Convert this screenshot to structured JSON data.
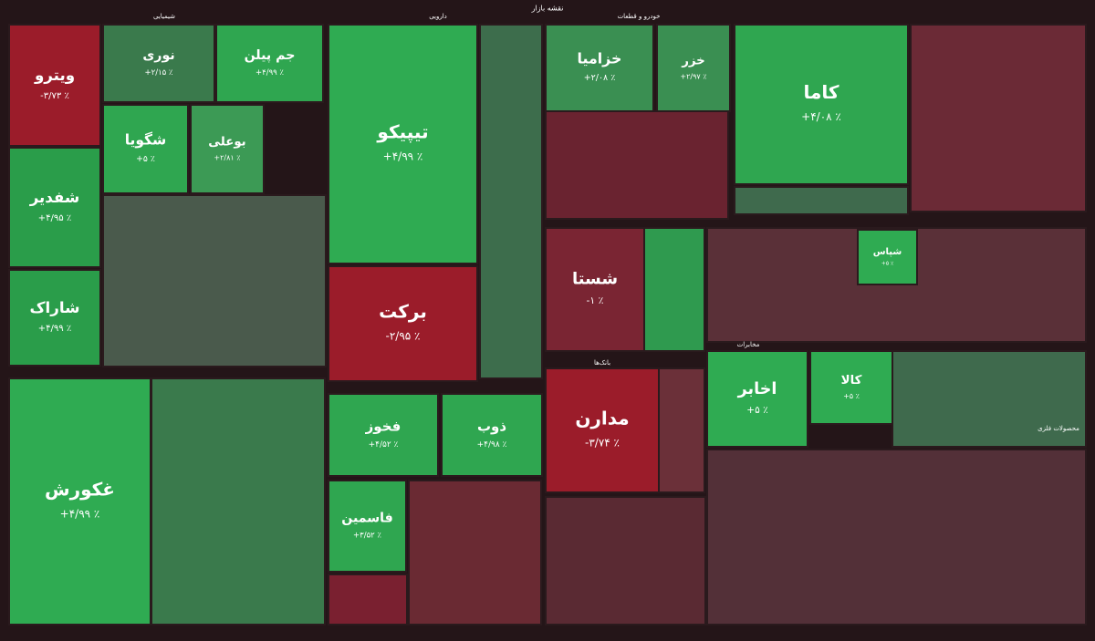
{
  "chart_data": {
    "type": "treemap",
    "title": "نقشه بازار",
    "groups": [
      "شیمیایی",
      "دارویی",
      "خودرو و قطعات",
      "بانک‌ها",
      "مخابرات",
      "محصولات فلزی"
    ],
    "categories": [
      "ویترو",
      "شفدیر",
      "شاراک",
      "نوری",
      "جم پیلن",
      "شگویا",
      "بوعلی",
      "تیپیکو",
      "برکت",
      "غکورش",
      "فخوز",
      "ذوب",
      "شستا",
      "مدارن",
      "کاما",
      "اخابر",
      "کالا",
      "شپاس",
      "خزامیا",
      "خزر",
      "فاسمین"
    ],
    "values": [
      -3.73,
      4.95,
      4.99,
      2.15,
      4.99,
      5,
      2.81,
      4.99,
      -2.95,
      4.99,
      4.52,
      4.98,
      -1,
      -3.74,
      4.08,
      5,
      5,
      5,
      2.08,
      2.97,
      3.52
    ],
    "value_labels": [
      "٪ ۳/۷۳-",
      "٪ ۴/۹۵+",
      "٪ ۴/۹۹+",
      "٪ ۲/۱۵+",
      "٪ ۴/۹۹+",
      "٪ ۵+",
      "٪ ۲/۸۱+",
      "٪ ۴/۹۹+",
      "٪ ۲/۹۵-",
      "٪ ۴/۹۹+",
      "٪ ۴/۵۲+",
      "٪ ۴/۹۸+",
      "٪ ۱-",
      "٪ ۳/۷۴-",
      "٪ ۴/۰۸+",
      "٪ ۵+",
      "٪ ۵+",
      "٪ ۵+",
      "٪ ۲/۰۸+",
      "٪ ۲/۹۷+",
      "٪ ۳/۵۲+"
    ],
    "colors": [
      "#9b1c2a",
      "#2a9d4a",
      "#2a9d4a",
      "#3a7a4c",
      "#2fa650",
      "#2fa650",
      "#3c9a55",
      "#2fab52",
      "#9b1c2a",
      "#2fab52",
      "#2fa650",
      "#2fa650",
      "#7a2533",
      "#9b1c2a",
      "#2fa650",
      "#2fab52",
      "#2fab52",
      "#2fab52",
      "#3a8f52",
      "#3a8f52",
      "#2fa650"
    ]
  }
}
